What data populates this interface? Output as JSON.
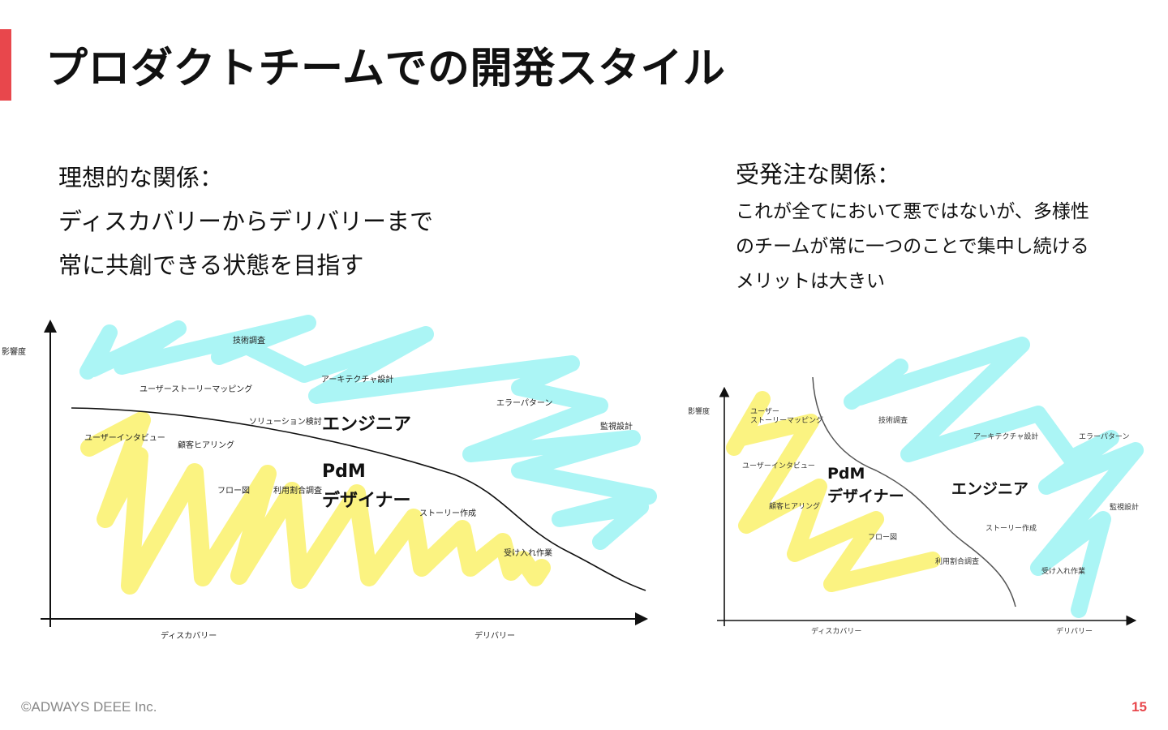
{
  "title": "プロダクトチームでの開発スタイル",
  "left": {
    "heading": "理想的な関係：",
    "line1": "ディスカバリーからデリバリーまで",
    "line2": "常に共創できる状態を目指す"
  },
  "right": {
    "heading": "受発注な関係：",
    "body1": "これが全てにおいて悪ではないが、多様性",
    "body2": "のチームが常に一つのことで集中し続ける",
    "body3": "メリットは大きい"
  },
  "diagram_left": {
    "y_axis": "影響度",
    "x_discovery": "ディスカバリー",
    "x_delivery": "デリバリー",
    "tasks": {
      "tech_research": "技術調査",
      "user_story_mapping": "ユーザーストーリーマッピング",
      "architecture": "アーキテクチャ設計",
      "error_pattern": "エラーパターン",
      "solution_review": "ソリューション検討",
      "monitoring": "監視設計",
      "user_interview": "ユーザーインタビュー",
      "customer_hearing": "顧客ヒアリング",
      "flow_chart": "フロー図",
      "usage_research": "利用割合調査",
      "story_creation": "ストーリー作成",
      "acceptance": "受け入れ作業"
    },
    "roles": {
      "engineer": "エンジニア",
      "pdm": "PdM",
      "designer": "デザイナー"
    }
  },
  "diagram_right": {
    "y_axis": "影響度",
    "x_discovery": "ディスカバリー",
    "x_delivery": "デリバリー",
    "tasks": {
      "user": "ユーザー",
      "story_mapping": "ストーリーマッピング",
      "tech_research": "技術調査",
      "architecture": "アーキテクチャ設計",
      "error_pattern": "エラーパターン",
      "user_interview": "ユーザーインタビュー",
      "customer_hearing": "顧客ヒアリング",
      "monitoring": "監視設計",
      "story_creation": "ストーリー作成",
      "flow_chart": "フロー図",
      "usage_research": "利用割合調査",
      "acceptance": "受け入れ作業"
    },
    "roles": {
      "pdm": "PdM",
      "designer": "デザイナー",
      "engineer": "エンジニア"
    }
  },
  "colors": {
    "accent": "#e8474c",
    "cyan": "#a6f4f4",
    "yellow": "#fbf27a"
  },
  "footer": {
    "copyright": "©ADWAYS DEEE Inc.",
    "page": "15"
  }
}
